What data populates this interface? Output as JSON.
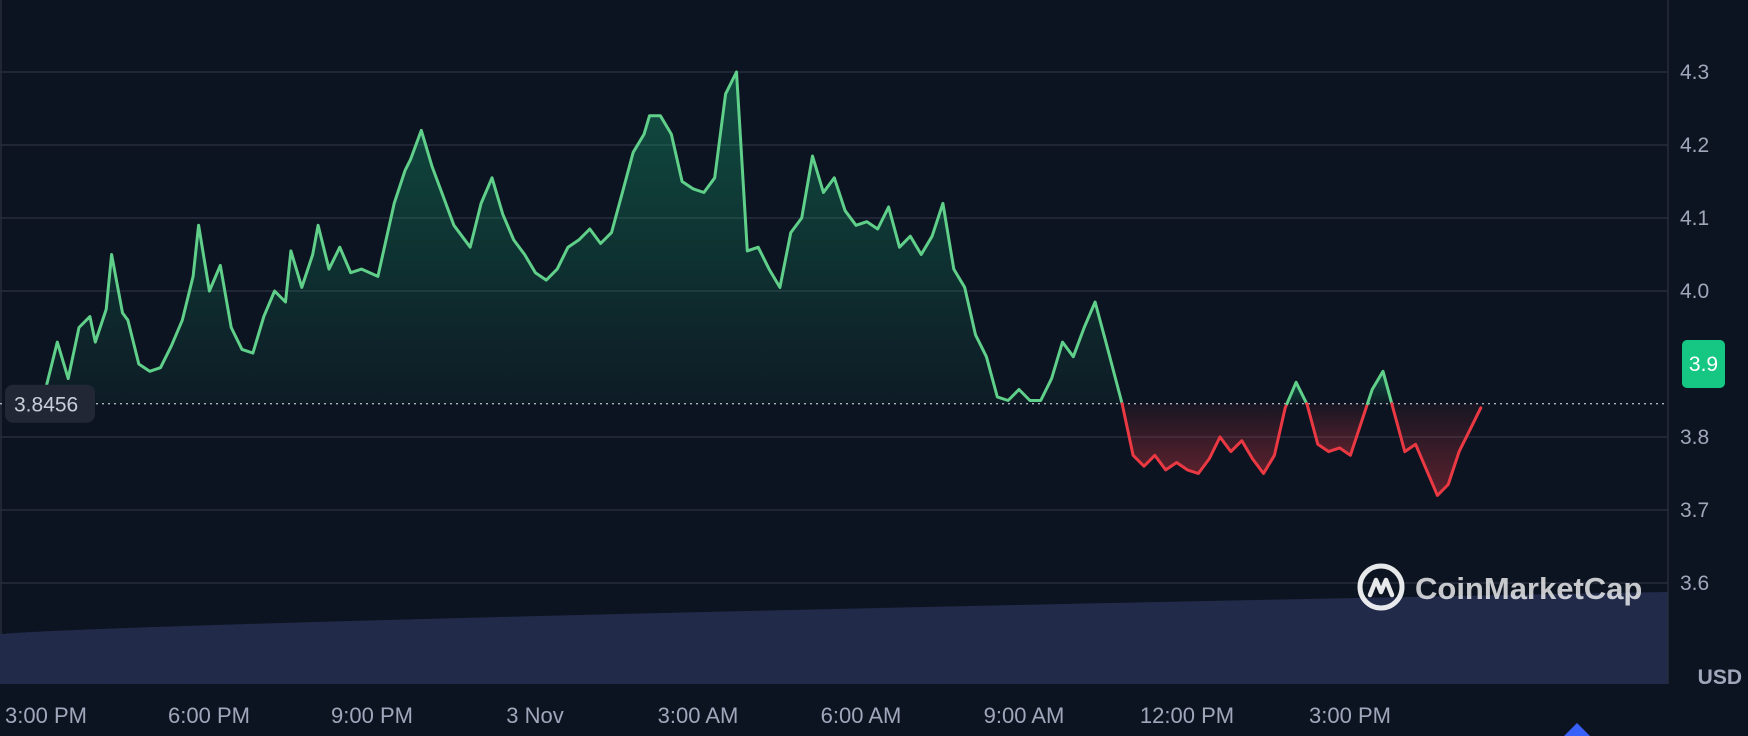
{
  "chart_data": {
    "type": "area",
    "title": "",
    "xlabel": "",
    "ylabel": "",
    "currency_label": "USD",
    "current_price_label": "3.9",
    "baseline_label": "3.8456",
    "baseline": 3.8456,
    "ylim": [
      3.465,
      4.395
    ],
    "y_ticks": [
      3.6,
      3.7,
      3.8,
      4.0,
      4.1,
      4.2,
      4.3
    ],
    "y_tick_labels": [
      "3.6",
      "3.7",
      "3.8",
      "4.0",
      "4.1",
      "4.2",
      "4.3"
    ],
    "x_range_hours": [
      -0.1,
      24.7
    ],
    "x_ticks": [
      {
        "h": 0,
        "label": "3:00 PM"
      },
      {
        "h": 3,
        "label": "6:00 PM"
      },
      {
        "h": 6,
        "label": "9:00 PM"
      },
      {
        "h": 9,
        "label": "3 Nov"
      },
      {
        "h": 12,
        "label": "3:00 AM"
      },
      {
        "h": 15,
        "label": "6:00 AM"
      },
      {
        "h": 18,
        "label": "9:00 AM"
      },
      {
        "h": 21,
        "label": "12:00 PM"
      },
      {
        "h": 24,
        "label": "3:00 PM"
      }
    ],
    "grid": true,
    "colors": {
      "up": "#5fcf8a",
      "down": "#ea3943",
      "volume": "#222a4a",
      "background": "#0d1421",
      "grid": "#262d3d",
      "badge": "#16c784"
    },
    "price_series": [
      [
        -0.1,
        3.847
      ],
      [
        0.1,
        3.87
      ],
      [
        0.3,
        3.93
      ],
      [
        0.5,
        3.88
      ],
      [
        0.7,
        3.95
      ],
      [
        0.9,
        3.965
      ],
      [
        1.0,
        3.93
      ],
      [
        1.2,
        3.975
      ],
      [
        1.3,
        4.05
      ],
      [
        1.5,
        3.97
      ],
      [
        1.6,
        3.96
      ],
      [
        1.8,
        3.9
      ],
      [
        2.0,
        3.89
      ],
      [
        2.2,
        3.895
      ],
      [
        2.4,
        3.925
      ],
      [
        2.6,
        3.96
      ],
      [
        2.8,
        4.02
      ],
      [
        2.9,
        4.09
      ],
      [
        3.1,
        4.0
      ],
      [
        3.3,
        4.035
      ],
      [
        3.5,
        3.95
      ],
      [
        3.7,
        3.92
      ],
      [
        3.9,
        3.915
      ],
      [
        4.1,
        3.965
      ],
      [
        4.3,
        4.0
      ],
      [
        4.5,
        3.985
      ],
      [
        4.6,
        4.055
      ],
      [
        4.8,
        4.005
      ],
      [
        5.0,
        4.05
      ],
      [
        5.1,
        4.09
      ],
      [
        5.3,
        4.03
      ],
      [
        5.5,
        4.06
      ],
      [
        5.7,
        4.025
      ],
      [
        5.9,
        4.03
      ],
      [
        6.2,
        4.02
      ],
      [
        6.5,
        4.12
      ],
      [
        6.7,
        4.165
      ],
      [
        6.8,
        4.18
      ],
      [
        7.0,
        4.22
      ],
      [
        7.2,
        4.17
      ],
      [
        7.4,
        4.13
      ],
      [
        7.6,
        4.09
      ],
      [
        7.9,
        4.06
      ],
      [
        8.1,
        4.12
      ],
      [
        8.3,
        4.155
      ],
      [
        8.5,
        4.105
      ],
      [
        8.7,
        4.07
      ],
      [
        8.9,
        4.05
      ],
      [
        9.1,
        4.025
      ],
      [
        9.3,
        4.015
      ],
      [
        9.5,
        4.03
      ],
      [
        9.7,
        4.06
      ],
      [
        9.9,
        4.07
      ],
      [
        10.1,
        4.085
      ],
      [
        10.3,
        4.065
      ],
      [
        10.5,
        4.08
      ],
      [
        10.7,
        4.135
      ],
      [
        10.9,
        4.19
      ],
      [
        11.1,
        4.215
      ],
      [
        11.2,
        4.24
      ],
      [
        11.4,
        4.24
      ],
      [
        11.6,
        4.215
      ],
      [
        11.8,
        4.15
      ],
      [
        12.0,
        4.14
      ],
      [
        12.2,
        4.135
      ],
      [
        12.4,
        4.155
      ],
      [
        12.6,
        4.27
      ],
      [
        12.8,
        4.3
      ],
      [
        13.0,
        4.055
      ],
      [
        13.2,
        4.06
      ],
      [
        13.4,
        4.03
      ],
      [
        13.6,
        4.005
      ],
      [
        13.8,
        4.08
      ],
      [
        14.0,
        4.1
      ],
      [
        14.2,
        4.185
      ],
      [
        14.4,
        4.135
      ],
      [
        14.6,
        4.155
      ],
      [
        14.8,
        4.11
      ],
      [
        15.0,
        4.09
      ],
      [
        15.2,
        4.095
      ],
      [
        15.4,
        4.085
      ],
      [
        15.6,
        4.115
      ],
      [
        15.8,
        4.06
      ],
      [
        16.0,
        4.075
      ],
      [
        16.2,
        4.05
      ],
      [
        16.4,
        4.075
      ],
      [
        16.6,
        4.12
      ],
      [
        16.8,
        4.03
      ],
      [
        17.0,
        4.005
      ],
      [
        17.2,
        3.94
      ],
      [
        17.4,
        3.91
      ],
      [
        17.6,
        3.855
      ],
      [
        17.8,
        3.85
      ],
      [
        18.0,
        3.865
      ],
      [
        18.2,
        3.85
      ],
      [
        18.4,
        3.85
      ],
      [
        18.6,
        3.88
      ],
      [
        18.8,
        3.93
      ],
      [
        19.0,
        3.91
      ],
      [
        19.2,
        3.95
      ],
      [
        19.4,
        3.985
      ],
      [
        19.6,
        3.93
      ],
      [
        19.9,
        3.845
      ],
      [
        20.1,
        3.775
      ],
      [
        20.3,
        3.76
      ],
      [
        20.5,
        3.775
      ],
      [
        20.7,
        3.755
      ],
      [
        20.9,
        3.765
      ],
      [
        21.1,
        3.755
      ],
      [
        21.3,
        3.75
      ],
      [
        21.5,
        3.77
      ],
      [
        21.7,
        3.8
      ],
      [
        21.9,
        3.78
      ],
      [
        22.1,
        3.795
      ],
      [
        22.3,
        3.77
      ],
      [
        22.5,
        3.75
      ],
      [
        22.7,
        3.775
      ],
      [
        22.9,
        3.84
      ],
      [
        23.1,
        3.875
      ],
      [
        23.3,
        3.845
      ],
      [
        23.5,
        3.79
      ],
      [
        23.7,
        3.78
      ],
      [
        23.9,
        3.785
      ],
      [
        24.1,
        3.775
      ],
      [
        24.3,
        3.82
      ],
      [
        24.5,
        3.865
      ],
      [
        24.7,
        3.89
      ],
      [
        24.9,
        3.835
      ],
      [
        25.1,
        3.78
      ],
      [
        25.3,
        3.79
      ],
      [
        25.5,
        3.755
      ],
      [
        25.7,
        3.72
      ],
      [
        25.9,
        3.735
      ],
      [
        26.1,
        3.78
      ],
      [
        26.3,
        3.81
      ],
      [
        26.5,
        3.84
      ]
    ]
  },
  "watermark": {
    "brand": "CoinMarketCap",
    "logo_icon": "coinmarketcap-logo-icon"
  }
}
